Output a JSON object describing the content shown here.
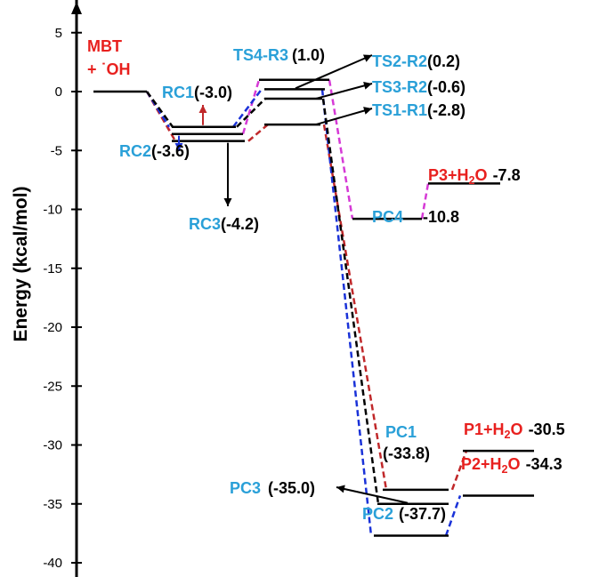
{
  "chart_data": {
    "type": "energy-profile",
    "ylabel": "Energy (kcal/mol)",
    "ylim": [
      -40,
      5
    ],
    "yticks": [
      5,
      0,
      -5,
      -10,
      -15,
      -20,
      -25,
      -30,
      -35,
      -40
    ],
    "colors": {
      "black": "#000000",
      "red_path": "#c0282a",
      "blue_path": "#1a32d8",
      "magenta_path": "#d63ad6",
      "name_blue": "#2aa0d8",
      "name_red": "#e8201e"
    },
    "reactant": {
      "name_line1": "MBT",
      "name_line2": "+ ˙OH",
      "energy": 0
    },
    "levels": [
      {
        "id": "RC1",
        "name": "RC1",
        "value_text": "(-3.0)",
        "energy": -3.0
      },
      {
        "id": "RC2",
        "name": "RC2",
        "value_text": "(-3.6)",
        "energy": -3.6
      },
      {
        "id": "RC3",
        "name": "RC3",
        "value_text": "(-4.2)",
        "energy": -4.2
      },
      {
        "id": "TS4",
        "name": "TS4-R3",
        "value_text": "(1.0)",
        "energy": 1.0
      },
      {
        "id": "TS2",
        "name": "TS2-R2",
        "value_text": "(0.2)",
        "energy": 0.2
      },
      {
        "id": "TS3",
        "name": "TS3-R2",
        "value_text": "(-0.6)",
        "energy": -0.6
      },
      {
        "id": "TS1",
        "name": "TS1-R1",
        "value_text": "(-2.8)",
        "energy": -2.8
      },
      {
        "id": "PC4",
        "name": "PC4",
        "value_text": "-10.8",
        "energy": -10.8
      },
      {
        "id": "P3",
        "name": "P3+H",
        "name_sub": "2",
        "name_tail": "O",
        "value_text": "-7.8",
        "energy": -7.8
      },
      {
        "id": "PC1",
        "name": "PC1",
        "value_text": "(-33.8)",
        "energy": -33.8
      },
      {
        "id": "P1",
        "name": "P1+H",
        "name_sub": "2",
        "name_tail": "O",
        "value_text": "-30.5",
        "energy": -30.5
      },
      {
        "id": "PC3",
        "name": "PC3",
        "value_text": "(-35.0)",
        "energy": -35.0
      },
      {
        "id": "PC2",
        "name": "PC2",
        "value_text": "(-37.7)",
        "energy": -37.7
      },
      {
        "id": "P2",
        "name": "P2+H",
        "name_sub": "2",
        "name_tail": "O",
        "value_text": "-34.3",
        "energy": -34.3
      }
    ],
    "pathways": [
      {
        "color": "magenta_path",
        "sequence": [
          "reactant",
          "RC2",
          "TS4",
          "PC4",
          "P3"
        ]
      },
      {
        "color": "red_path",
        "sequence": [
          "reactant",
          "RC3",
          "TS1",
          "PC1",
          "P1"
        ]
      },
      {
        "color": "blue_path",
        "sequence": [
          "reactant",
          "RC1",
          "TS2",
          "PC2",
          "P2"
        ]
      },
      {
        "color": "black",
        "sequence": [
          "reactant",
          "RC1",
          "TS3",
          "PC3"
        ]
      }
    ]
  }
}
